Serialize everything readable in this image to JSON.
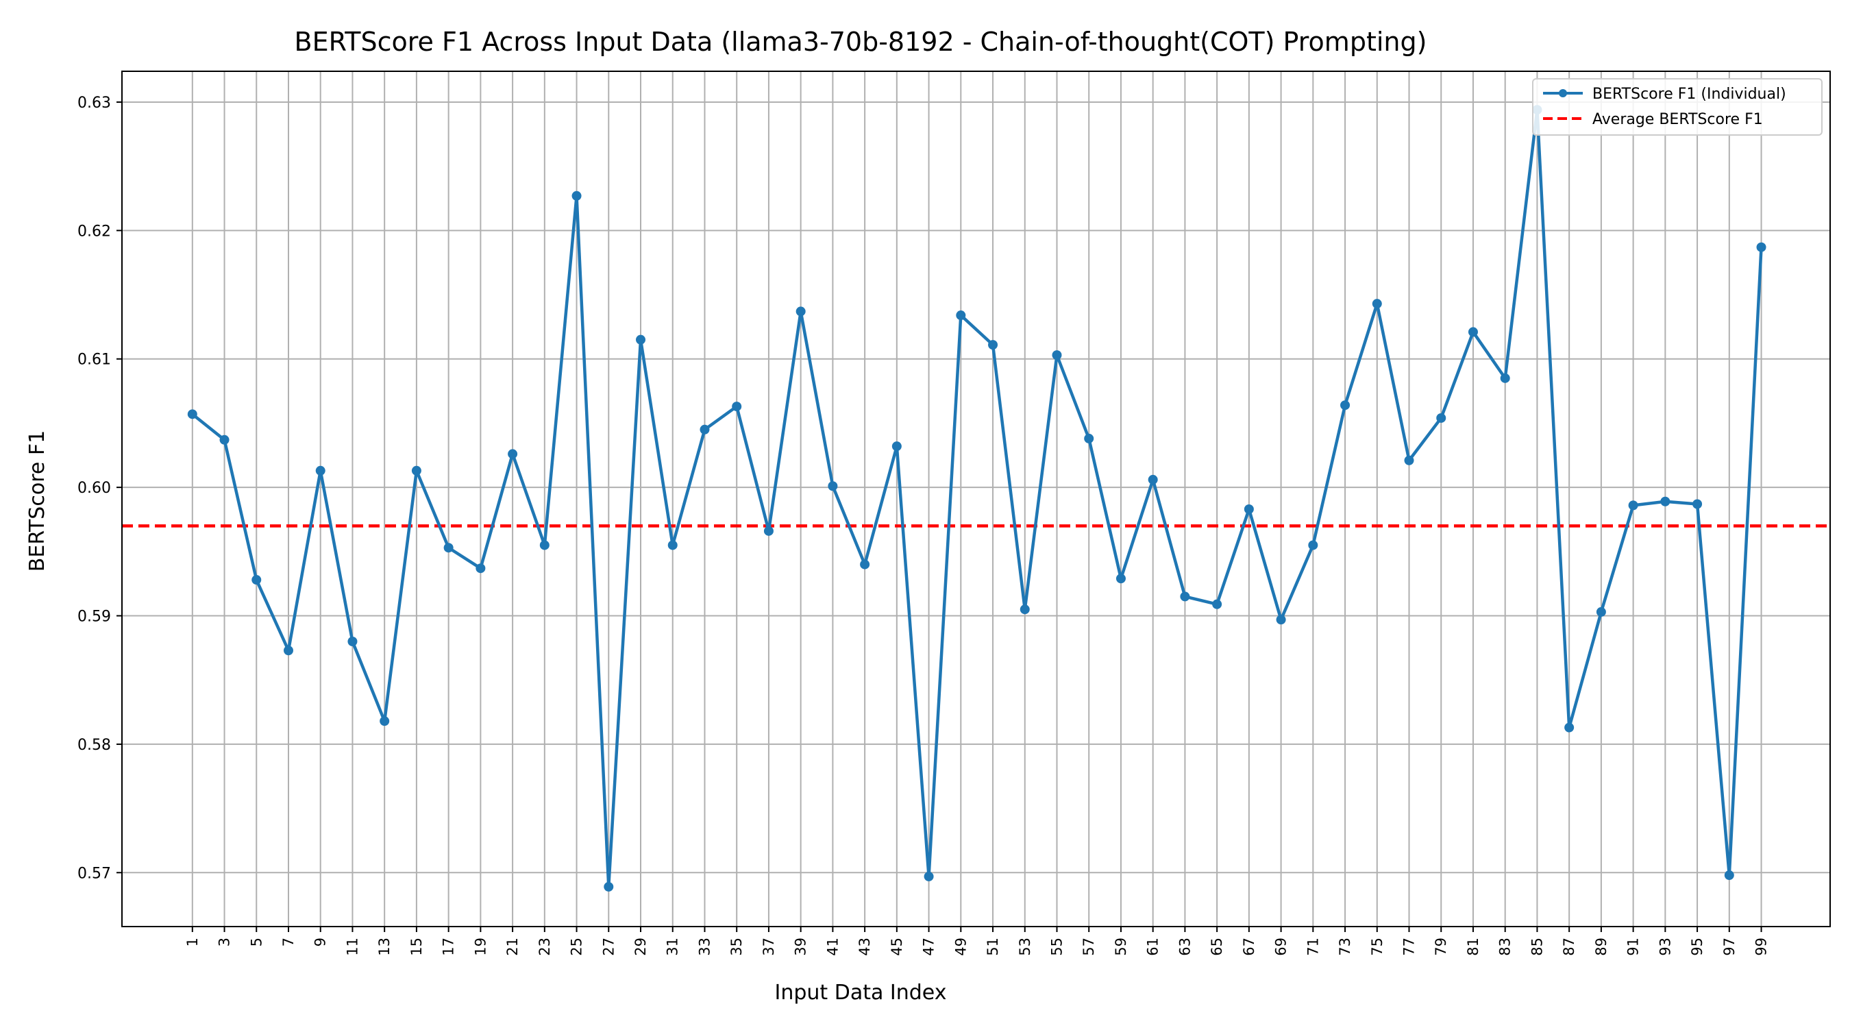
{
  "chart_data": {
    "type": "line",
    "title": "BERTScore F1 Across Input Data (llama3-70b-8192 - Chain-of-thought(COT) Prompting)",
    "xlabel": "Input Data Index",
    "ylabel": "BERTScore F1",
    "x": [
      1,
      3,
      5,
      7,
      9,
      11,
      13,
      15,
      17,
      19,
      21,
      23,
      25,
      27,
      29,
      31,
      33,
      35,
      37,
      39,
      41,
      43,
      45,
      47,
      49,
      51,
      53,
      55,
      57,
      59,
      61,
      63,
      65,
      67,
      69,
      71,
      73,
      75,
      77,
      79,
      81,
      83,
      85,
      87,
      89,
      91,
      93,
      95,
      97,
      99
    ],
    "xlim": [
      -3.4,
      103.3
    ],
    "ylim": [
      0.5658,
      0.6324
    ],
    "yticks": [
      0.57,
      0.58,
      0.59,
      0.6,
      0.61,
      0.62,
      0.63
    ],
    "ytick_labels": [
      "0.57",
      "0.58",
      "0.59",
      "0.60",
      "0.61",
      "0.62",
      "0.63"
    ],
    "grid": true,
    "legend_position": "top-right",
    "series": [
      {
        "name": "BERTScore F1 (Individual)",
        "color": "#1f77b4",
        "style": "solid-with-markers",
        "values": [
          0.6057,
          0.6037,
          0.5928,
          0.5873,
          0.6013,
          0.588,
          0.5818,
          0.6013,
          0.5953,
          0.5937,
          0.6026,
          0.5955,
          0.6227,
          0.5689,
          0.6115,
          0.5955,
          0.6045,
          0.6063,
          0.5966,
          0.6137,
          0.6001,
          0.594,
          0.6032,
          0.5697,
          0.6134,
          0.6111,
          0.5905,
          0.6103,
          0.6038,
          0.5929,
          0.6006,
          0.5915,
          0.5909,
          0.5983,
          0.5897,
          0.5955,
          0.6064,
          0.6143,
          0.6021,
          0.6054,
          0.6121,
          0.6085,
          0.6294,
          0.5813,
          0.5903,
          0.5986,
          0.5989,
          0.5987,
          0.5698,
          0.6187
        ]
      },
      {
        "name": "Average BERTScore F1",
        "color": "#ff0000",
        "style": "dashed",
        "value": 0.597
      }
    ]
  }
}
